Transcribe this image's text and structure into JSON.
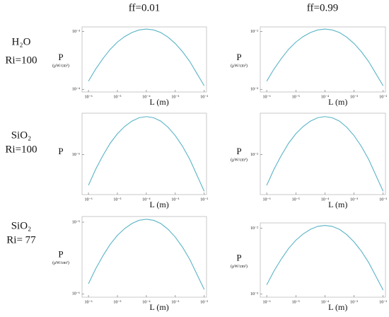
{
  "columns": [
    "ff=0.01",
    "ff=0.99"
  ],
  "rows": [
    {
      "material": "H₂O",
      "ri": "Ri=100"
    },
    {
      "material": "SiO₂",
      "ri": "Ri=100"
    },
    {
      "material": "SiO₂",
      "ri": "Ri= 77"
    }
  ],
  "chart_data": [
    {
      "type": "line",
      "xscale": "log",
      "yscale": "log",
      "color": "#5ab4c6",
      "x_label": "L (m)",
      "y_label": "P",
      "y_unit": "(μW/cm²)",
      "x": [
        1e-06,
        1.778e-06,
        3.162e-06,
        5.623e-06,
        1e-05,
        1.778e-05,
        3.162e-05,
        5.623e-05,
        0.0001,
        0.0001778,
        0.0003162,
        0.0005623,
        0.001,
        0.001778,
        0.003162,
        0.005623,
        0.01
      ],
      "values": [
        0.0001385,
        0.0002246,
        0.0003399,
        0.0004914,
        0.0006553,
        0.0008154,
        0.0009581,
        0.001063,
        0.0011,
        0.001063,
        0.0009581,
        0.0007968,
        0.0006185,
        0.0004481,
        0.0003029,
        0.0001868,
        0.0001152
      ],
      "xlim": [
        6e-07,
        0.012
      ],
      "ylim": [
        9e-05,
        0.0012
      ],
      "xticks": [
        {
          "value": 1e-06,
          "label": "10⁻⁶"
        },
        {
          "value": 1e-05,
          "label": "10⁻⁵"
        },
        {
          "value": 0.0001,
          "label": "10⁻⁴"
        },
        {
          "value": 0.001,
          "label": "10⁻³"
        },
        {
          "value": 0.01,
          "label": "10⁻²"
        }
      ],
      "yticks": [
        {
          "value": 0.0001,
          "label": "10⁻⁴"
        },
        {
          "value": 0.001,
          "label": "10⁻³"
        }
      ]
    },
    {
      "type": "line",
      "xscale": "log",
      "yscale": "log",
      "color": "#5ab4c6",
      "x_label": "L (m)",
      "y_label": "P",
      "y_unit": "(μW/cm²)",
      "x": [
        1e-06,
        1.778e-06,
        3.162e-06,
        5.623e-06,
        1e-05,
        1.778e-05,
        3.162e-05,
        5.623e-05,
        0.0001,
        0.0001778,
        0.0003162,
        0.0005623,
        0.001,
        0.001778,
        0.003162,
        0.005623,
        0.01
      ],
      "values": [
        0.001385,
        0.002246,
        0.003399,
        0.004914,
        0.006553,
        0.008154,
        0.009581,
        0.01063,
        0.011,
        0.01063,
        0.009581,
        0.007968,
        0.006185,
        0.004481,
        0.003029,
        0.001868,
        0.001152
      ],
      "xlim": [
        6e-07,
        0.012
      ],
      "ylim": [
        0.0009,
        0.012
      ],
      "xticks": [
        {
          "value": 1e-06,
          "label": "10⁻⁶"
        },
        {
          "value": 1e-05,
          "label": "10⁻⁵"
        },
        {
          "value": 0.0001,
          "label": "10⁻⁴"
        },
        {
          "value": 0.001,
          "label": "10⁻³"
        },
        {
          "value": 0.01,
          "label": "10⁻²"
        }
      ],
      "yticks": [
        {
          "value": 0.001,
          "label": "10⁻³"
        },
        {
          "value": 0.01,
          "label": "10⁻²"
        }
      ]
    },
    {
      "type": "line",
      "xscale": "log",
      "yscale": "log",
      "color": "#5ab4c6",
      "x_label": "L (m)",
      "y_label": "P",
      "x": [
        1e-06,
        1.778e-06,
        3.162e-06,
        5.623e-06,
        1e-05,
        1.778e-05,
        3.162e-05,
        5.623e-05,
        0.0001,
        0.0001778,
        0.0003162,
        0.0005623,
        0.001,
        0.001778,
        0.003162,
        0.005623,
        0.01
      ],
      "values": [
        3.981e-06,
        6.457e-06,
        9.771e-06,
        1.412e-05,
        1.884e-05,
        2.344e-05,
        2.754e-05,
        3.055e-05,
        3.162e-05,
        3.055e-05,
        2.754e-05,
        2.291e-05,
        1.778e-05,
        1.288e-05,
        8.708e-06,
        5.369e-06,
        3.311e-06
      ],
      "xlim": [
        6e-07,
        0.012
      ],
      "ylim": [
        3e-06,
        3.5e-05
      ],
      "xticks": [
        {
          "value": 1e-06,
          "label": "10⁻⁶"
        },
        {
          "value": 1e-05,
          "label": "10⁻⁵"
        },
        {
          "value": 0.0001,
          "label": "10⁻⁴"
        },
        {
          "value": 0.001,
          "label": "10⁻³"
        },
        {
          "value": 0.01,
          "label": "10⁻²"
        }
      ],
      "yticks": [
        {
          "value": 1e-05,
          "label": "10⁻⁵"
        }
      ]
    },
    {
      "type": "line",
      "xscale": "log",
      "yscale": "log",
      "color": "#5ab4c6",
      "x_label": "L (m)",
      "y_label": "P",
      "y_unit": "(μW/cm²)",
      "x": [
        1e-06,
        1.778e-06,
        3.162e-06,
        5.623e-06,
        1e-05,
        1.778e-05,
        3.162e-05,
        5.623e-05,
        0.0001,
        0.0001778,
        0.0003162,
        0.0005623,
        0.001,
        0.001778,
        0.003162,
        0.005623,
        0.01
      ],
      "values": [
        0.003981,
        0.006457,
        0.009771,
        0.01412,
        0.01884,
        0.02344,
        0.02754,
        0.03055,
        0.03162,
        0.03055,
        0.02754,
        0.02291,
        0.01778,
        0.01288,
        0.008708,
        0.005369,
        0.003311
      ],
      "xlim": [
        6e-07,
        0.012
      ],
      "ylim": [
        0.003,
        0.035
      ],
      "xticks": [
        {
          "value": 1e-06,
          "label": "10⁻⁶"
        },
        {
          "value": 1e-05,
          "label": "10⁻⁵"
        },
        {
          "value": 0.0001,
          "label": "10⁻⁴"
        },
        {
          "value": 0.001,
          "label": "10⁻³"
        },
        {
          "value": 0.01,
          "label": "10⁻²"
        }
      ],
      "yticks": [
        {
          "value": 0.01,
          "label": "10⁻²"
        }
      ]
    },
    {
      "type": "line",
      "xscale": "log",
      "yscale": "log",
      "color": "#5ab4c6",
      "x_label": "L (m)",
      "y_label": "P",
      "y_unit": "(μW/cm²)",
      "x": [
        1e-06,
        1.778e-06,
        3.162e-06,
        5.623e-06,
        1e-05,
        1.778e-05,
        3.162e-05,
        5.623e-05,
        0.0001,
        0.0001778,
        0.0003162,
        0.0005623,
        0.001,
        0.001778,
        0.003162,
        0.005623,
        0.01
      ],
      "values": [
        1.385e-06,
        2.246e-06,
        3.399e-06,
        4.914e-06,
        6.553e-06,
        8.154e-06,
        9.581e-06,
        1.063e-05,
        1.1e-05,
        1.063e-05,
        9.581e-06,
        7.968e-06,
        6.185e-06,
        4.481e-06,
        3.029e-06,
        1.868e-06,
        1.152e-06
      ],
      "xlim": [
        6e-07,
        0.012
      ],
      "ylim": [
        9e-07,
        1.2e-05
      ],
      "xticks": [
        {
          "value": 1e-06,
          "label": "10⁻⁶"
        },
        {
          "value": 1e-05,
          "label": "10⁻⁵"
        },
        {
          "value": 0.0001,
          "label": "10⁻⁴"
        },
        {
          "value": 0.001,
          "label": "10⁻³"
        },
        {
          "value": 0.01,
          "label": "10⁻²"
        }
      ],
      "yticks": [
        {
          "value": 1e-06,
          "label": "10⁻⁶"
        },
        {
          "value": 1e-05,
          "label": "10⁻⁵"
        }
      ]
    },
    {
      "type": "line",
      "xscale": "log",
      "yscale": "log",
      "color": "#5ab4c6",
      "x_label": "L (m)",
      "y_label": "P",
      "y_unit": "(μW/cm²)",
      "x": [
        1e-06,
        1.778e-06,
        3.162e-06,
        5.623e-06,
        1e-05,
        1.778e-05,
        3.162e-05,
        5.623e-05,
        0.0001,
        0.0001778,
        0.0003162,
        0.0005623,
        0.001,
        0.001778,
        0.003162,
        0.005623,
        0.01
      ],
      "values": [
        0.001385,
        0.002246,
        0.003399,
        0.004914,
        0.006553,
        0.008154,
        0.009581,
        0.01063,
        0.011,
        0.01063,
        0.009581,
        0.007968,
        0.006185,
        0.004481,
        0.003029,
        0.001868,
        0.001152
      ],
      "xlim": [
        6e-07,
        0.012
      ],
      "ylim": [
        0.0009,
        0.012
      ],
      "xticks": [
        {
          "value": 1e-06,
          "label": "10⁻⁶"
        },
        {
          "value": 1e-05,
          "label": "10⁻⁵"
        },
        {
          "value": 0.0001,
          "label": "10⁻⁴"
        },
        {
          "value": 0.001,
          "label": "10⁻³"
        },
        {
          "value": 0.01,
          "label": "10⁻²"
        }
      ],
      "yticks": [
        {
          "value": 0.001,
          "label": "10⁻³"
        },
        {
          "value": 0.01,
          "label": "10⁻²"
        }
      ]
    }
  ]
}
